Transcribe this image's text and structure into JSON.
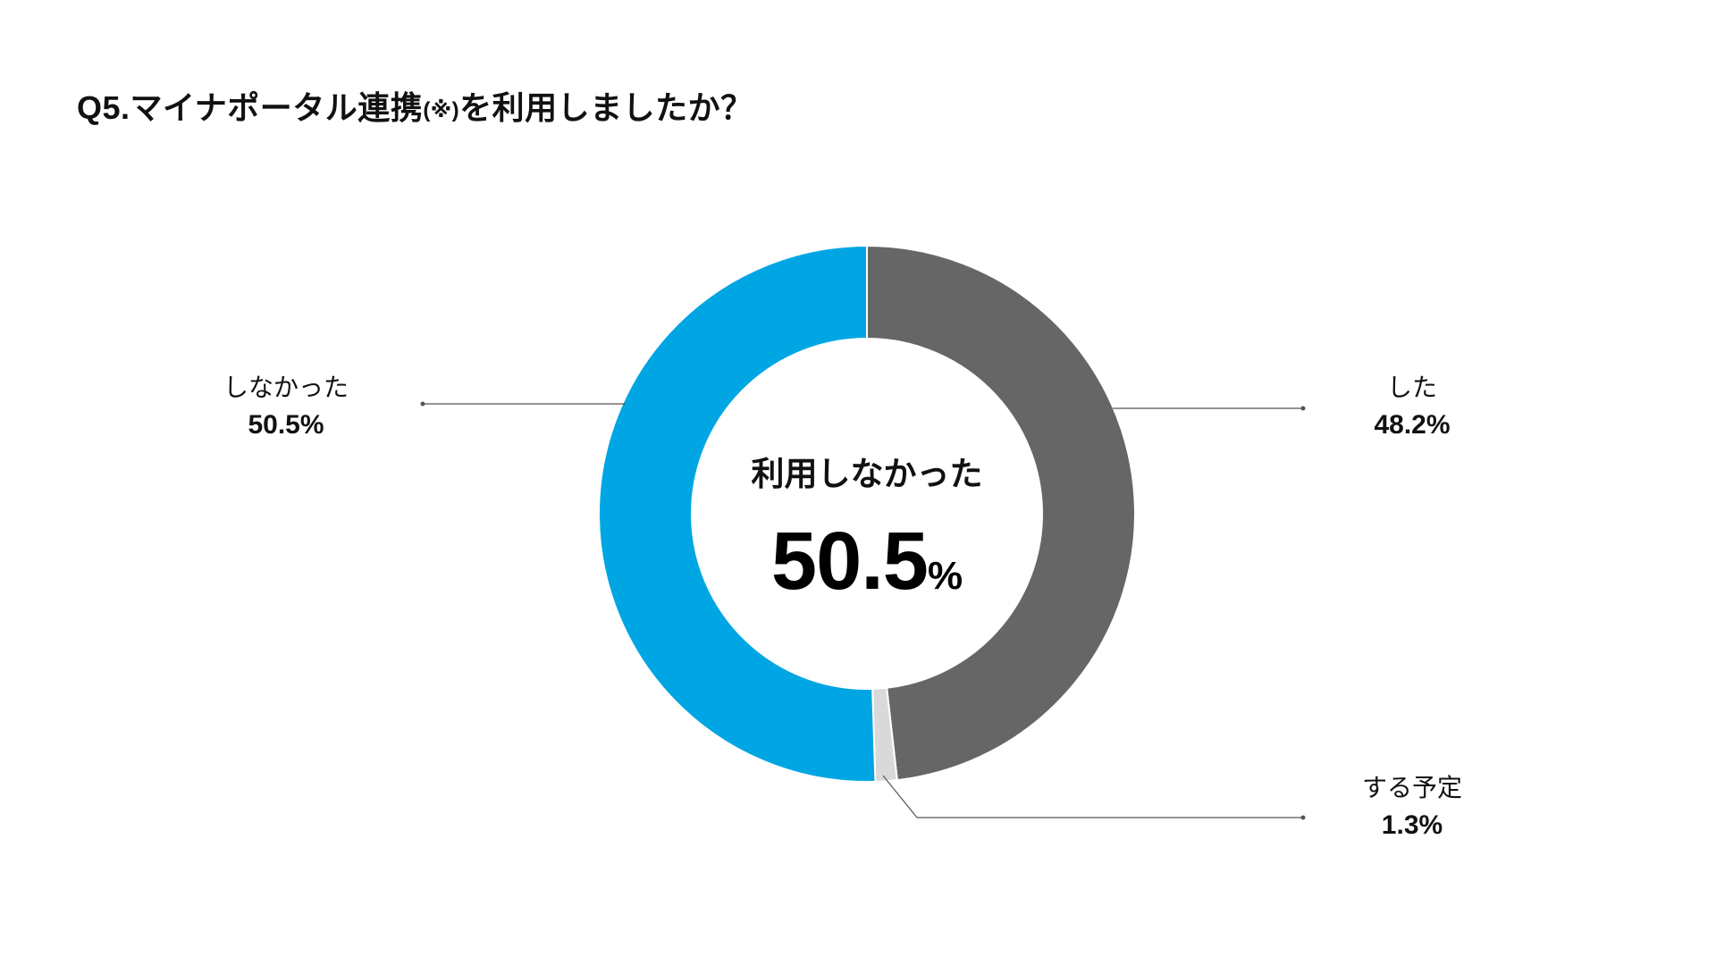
{
  "title": {
    "main": "Q5.マイナポータル連携",
    "note": "(※)",
    "suffix": "を利用しましたか？"
  },
  "center": {
    "label": "利用しなかった",
    "value": "50.5",
    "unit": "%"
  },
  "labels": {
    "not_used": {
      "text": "しなかった",
      "value": "50.5%"
    },
    "used": {
      "text": "した",
      "value": "48.2%"
    },
    "planned": {
      "text": "する予定",
      "value": "1.3%"
    }
  },
  "chart_data": {
    "type": "pie",
    "style": "donut",
    "title": "Q5.マイナポータル連携(※)を利用しましたか？",
    "slices": [
      {
        "label": "した",
        "value": 48.2,
        "color": "#666666"
      },
      {
        "label": "する予定",
        "value": 1.3,
        "color": "#d9d9d9"
      },
      {
        "label": "しなかった",
        "value": 50.5,
        "color": "#00a6e3"
      }
    ],
    "unit": "%",
    "center_text": "利用しなかった 50.5%",
    "start": "top",
    "direction": "clockwise",
    "legend": "none"
  }
}
